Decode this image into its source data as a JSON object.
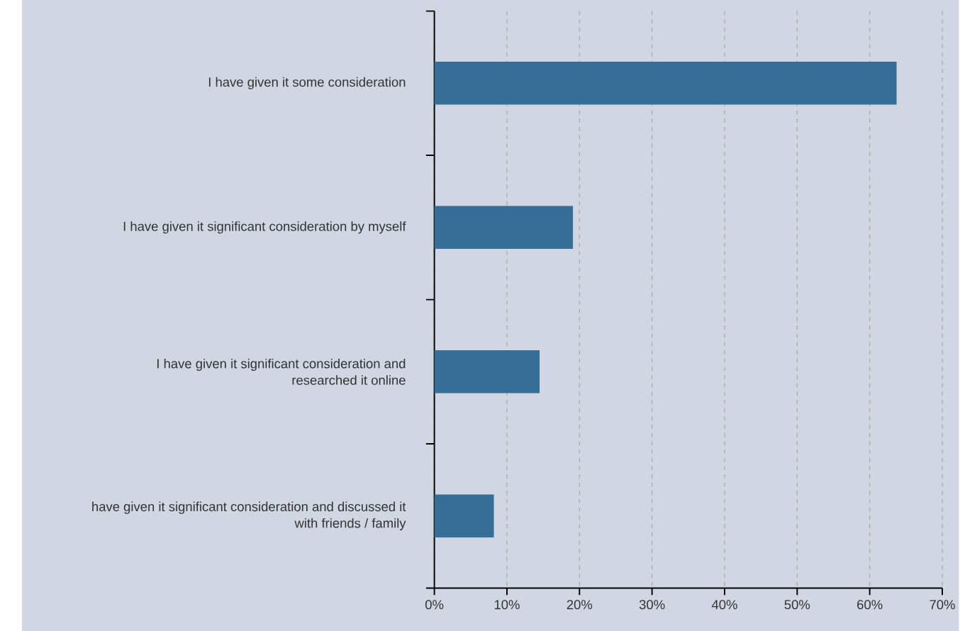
{
  "chart_data": {
    "type": "bar",
    "orientation": "horizontal",
    "categories": [
      "I have given it some consideration",
      "I have given it significant consideration by myself",
      "I have given it significant consideration and researched it online",
      "have given it significant consideration and discussed it with friends / family"
    ],
    "values": [
      63.7,
      19.1,
      14.5,
      8.2
    ],
    "color": "#356e96",
    "xlim": [
      0,
      70
    ],
    "xticks": [
      {
        "value": 0,
        "label": "0%"
      },
      {
        "value": 10,
        "label": "10%"
      },
      {
        "value": 20,
        "label": "20%"
      },
      {
        "value": 30,
        "label": "30%"
      },
      {
        "value": 40,
        "label": "40%"
      },
      {
        "value": 50,
        "label": "50%"
      },
      {
        "value": 60,
        "label": "60%"
      },
      {
        "value": 70,
        "label": "70%"
      }
    ],
    "grid": "x"
  }
}
